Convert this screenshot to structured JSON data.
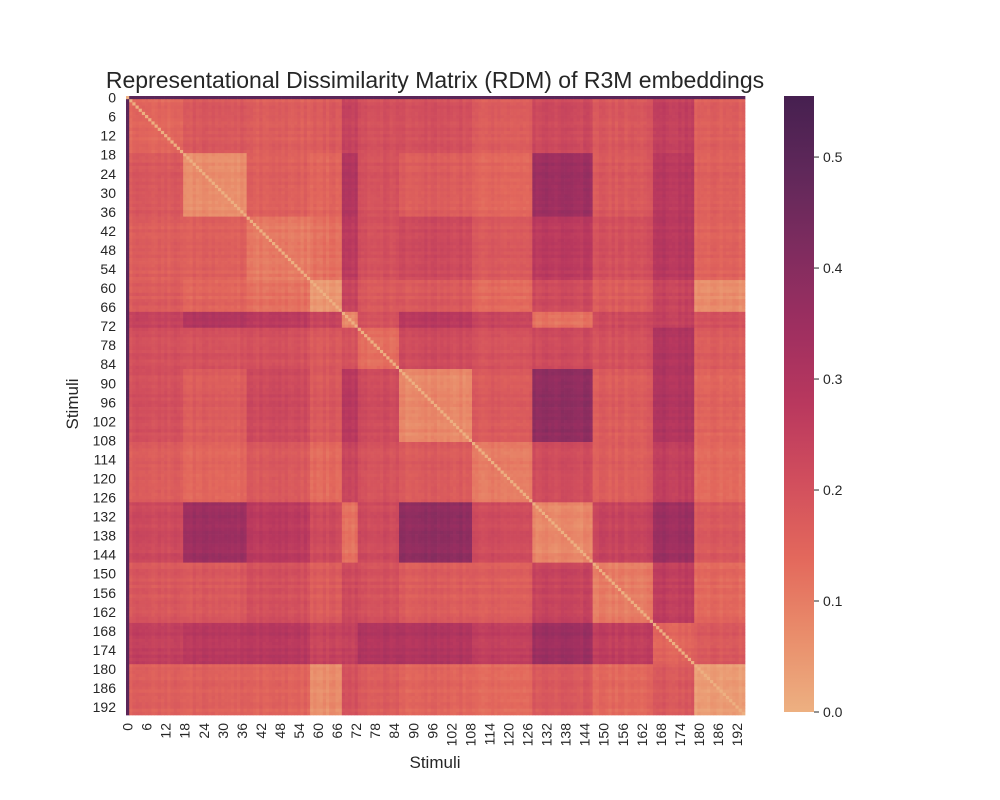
{
  "chart_data": {
    "type": "heatmap",
    "title": "Representational Dissimilarity Matrix (RDM) of R3M embeddings",
    "xlabel": "Stimuli",
    "ylabel": "Stimuli",
    "n": 195,
    "tick_labels": [
      "0",
      "6",
      "12",
      "18",
      "24",
      "30",
      "36",
      "42",
      "48",
      "54",
      "60",
      "66",
      "72",
      "78",
      "84",
      "90",
      "96",
      "102",
      "108",
      "114",
      "120",
      "126",
      "132",
      "138",
      "144",
      "150",
      "156",
      "162",
      "168",
      "174",
      "180",
      "186",
      "192"
    ],
    "colorbar": {
      "colormap": "flare",
      "colors_low_to_high": [
        "#edb081",
        "#e98d6b",
        "#e3685c",
        "#d14e5d",
        "#b9385e",
        "#9e2f60",
        "#7f2c5f",
        "#60285a",
        "#462050"
      ],
      "vmin": 0.0,
      "vmax": 0.555,
      "ticks": [
        0.0,
        0.1,
        0.2,
        0.3,
        0.4,
        0.5
      ],
      "tick_labels": [
        "0.0",
        "0.1",
        "0.2",
        "0.3",
        "0.4",
        "0.5"
      ]
    },
    "blocks": [
      {
        "stimuli": [
          0,
          0
        ],
        "within": 0.0
      },
      {
        "stimuli": [
          1,
          17
        ],
        "within": 0.14
      },
      {
        "stimuli": [
          18,
          37
        ],
        "within": 0.07
      },
      {
        "stimuli": [
          38,
          57
        ],
        "within": 0.1
      },
      {
        "stimuli": [
          58,
          67
        ],
        "within": 0.05
      },
      {
        "stimuli": [
          68,
          72
        ],
        "within": 0.08
      },
      {
        "stimuli": [
          73,
          85
        ],
        "within": 0.13
      },
      {
        "stimuli": [
          86,
          108
        ],
        "within": 0.08
      },
      {
        "stimuli": [
          109,
          127
        ],
        "within": 0.11
      },
      {
        "stimuli": [
          128,
          146
        ],
        "within": 0.08
      },
      {
        "stimuli": [
          147,
          165
        ],
        "within": 0.1
      },
      {
        "stimuli": [
          166,
          178
        ],
        "within": 0.15
      },
      {
        "stimuli": [
          179,
          194
        ],
        "within": 0.04
      }
    ],
    "between_blocks": [
      [
        0.0,
        0.5,
        0.5,
        0.5,
        0.5,
        0.5,
        0.5,
        0.5,
        0.5,
        0.5,
        0.5,
        0.5,
        0.5
      ],
      [
        0.5,
        0.14,
        0.18,
        0.16,
        0.17,
        0.24,
        0.2,
        0.2,
        0.17,
        0.22,
        0.18,
        0.25,
        0.16
      ],
      [
        0.5,
        0.18,
        0.07,
        0.16,
        0.15,
        0.3,
        0.2,
        0.17,
        0.15,
        0.35,
        0.18,
        0.28,
        0.16
      ],
      [
        0.5,
        0.16,
        0.16,
        0.1,
        0.12,
        0.27,
        0.2,
        0.22,
        0.18,
        0.27,
        0.2,
        0.28,
        0.15
      ],
      [
        0.5,
        0.17,
        0.15,
        0.12,
        0.05,
        0.24,
        0.18,
        0.18,
        0.14,
        0.22,
        0.17,
        0.24,
        0.07
      ],
      [
        0.5,
        0.24,
        0.3,
        0.27,
        0.24,
        0.08,
        0.2,
        0.28,
        0.24,
        0.12,
        0.22,
        0.25,
        0.2
      ],
      [
        0.5,
        0.2,
        0.2,
        0.2,
        0.18,
        0.2,
        0.13,
        0.22,
        0.2,
        0.22,
        0.2,
        0.3,
        0.17
      ],
      [
        0.5,
        0.2,
        0.17,
        0.22,
        0.18,
        0.28,
        0.22,
        0.08,
        0.18,
        0.38,
        0.17,
        0.3,
        0.15
      ],
      [
        0.5,
        0.17,
        0.15,
        0.18,
        0.14,
        0.24,
        0.2,
        0.18,
        0.11,
        0.22,
        0.17,
        0.26,
        0.14
      ],
      [
        0.5,
        0.22,
        0.35,
        0.27,
        0.22,
        0.12,
        0.22,
        0.38,
        0.22,
        0.08,
        0.24,
        0.35,
        0.18
      ],
      [
        0.5,
        0.18,
        0.18,
        0.2,
        0.17,
        0.22,
        0.2,
        0.17,
        0.17,
        0.24,
        0.1,
        0.26,
        0.14
      ],
      [
        0.5,
        0.25,
        0.28,
        0.28,
        0.24,
        0.25,
        0.3,
        0.3,
        0.26,
        0.35,
        0.26,
        0.15,
        0.18
      ],
      [
        0.5,
        0.16,
        0.16,
        0.15,
        0.07,
        0.2,
        0.17,
        0.15,
        0.14,
        0.18,
        0.14,
        0.18,
        0.04
      ]
    ]
  }
}
